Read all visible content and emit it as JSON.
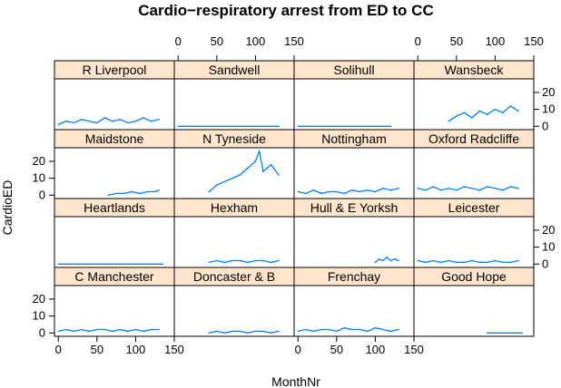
{
  "chart_data": {
    "type": "line",
    "title": "Cardio−respiratory arrest from ED to CC",
    "xlabel": "MonthNr",
    "ylabel": "CardioED",
    "xlim": [
      -5,
      150
    ],
    "ylim": [
      -2,
      28
    ],
    "x_ticks": [
      0,
      50,
      100,
      150
    ],
    "y_ticks": [
      0,
      10,
      20
    ],
    "line_color": "#0080ff",
    "strip_color": "#ffe5cc",
    "layout": {
      "rows": 4,
      "cols": 4
    },
    "panels": [
      {
        "name": "R Liverpool",
        "x": [
          0,
          10,
          20,
          30,
          40,
          50,
          60,
          70,
          80,
          90,
          100,
          110,
          120,
          130
        ],
        "y": [
          1,
          3,
          2,
          4,
          3,
          2,
          5,
          3,
          4,
          2,
          3,
          5,
          3,
          4
        ]
      },
      {
        "name": "Sandwell",
        "x": [
          0,
          130
        ],
        "y": [
          0,
          0
        ]
      },
      {
        "name": "Solihull",
        "x": [
          0,
          120
        ],
        "y": [
          0,
          0
        ]
      },
      {
        "name": "Wansbeck",
        "x": [
          40,
          50,
          60,
          70,
          80,
          90,
          100,
          110,
          120,
          130
        ],
        "y": [
          3,
          6,
          8,
          5,
          9,
          7,
          10,
          8,
          12,
          9
        ]
      },
      {
        "name": "Maidstone",
        "x": [
          65,
          75,
          85,
          95,
          105,
          115,
          125,
          130
        ],
        "y": [
          0,
          1,
          1,
          2,
          1,
          2,
          2,
          3
        ]
      },
      {
        "name": "N Tyneside",
        "x": [
          40,
          50,
          60,
          70,
          80,
          90,
          100,
          105,
          110,
          120,
          130
        ],
        "y": [
          2,
          6,
          8,
          10,
          12,
          16,
          20,
          26,
          14,
          18,
          12
        ]
      },
      {
        "name": "Nottingham",
        "x": [
          0,
          10,
          20,
          30,
          40,
          50,
          60,
          70,
          80,
          90,
          100,
          110,
          120,
          130
        ],
        "y": [
          2,
          1,
          3,
          1,
          2,
          2,
          1,
          3,
          2,
          3,
          2,
          4,
          3,
          4
        ]
      },
      {
        "name": "Oxford Radcliffe",
        "x": [
          0,
          10,
          20,
          30,
          40,
          50,
          60,
          70,
          80,
          90,
          100,
          110,
          120,
          130
        ],
        "y": [
          4,
          3,
          5,
          3,
          4,
          3,
          5,
          4,
          3,
          5,
          4,
          3,
          5,
          4
        ]
      },
      {
        "name": "Heartlands",
        "x": [
          0,
          135
        ],
        "y": [
          0,
          0
        ]
      },
      {
        "name": "Hexham",
        "x": [
          40,
          50,
          60,
          70,
          80,
          90,
          100,
          110,
          120,
          130
        ],
        "y": [
          1,
          2,
          1,
          2,
          2,
          1,
          2,
          2,
          1,
          2
        ]
      },
      {
        "name": "Hull & E Yorksh",
        "x": [
          100,
          105,
          110,
          115,
          120,
          125,
          130
        ],
        "y": [
          1,
          3,
          2,
          4,
          2,
          3,
          2
        ]
      },
      {
        "name": "Leicester",
        "x": [
          0,
          10,
          20,
          30,
          40,
          50,
          60,
          70,
          80,
          90,
          100,
          110,
          120,
          130
        ],
        "y": [
          2,
          1,
          2,
          1,
          2,
          1,
          1,
          2,
          1,
          1,
          2,
          1,
          1,
          2
        ]
      },
      {
        "name": "C Manchester",
        "x": [
          0,
          10,
          20,
          30,
          40,
          50,
          60,
          70,
          80,
          90,
          100,
          110,
          120,
          130
        ],
        "y": [
          1,
          2,
          1,
          2,
          1,
          2,
          2,
          1,
          2,
          1,
          2,
          1,
          2,
          2
        ]
      },
      {
        "name": "Doncaster & B",
        "x": [
          40,
          50,
          60,
          70,
          80,
          90,
          100,
          110,
          120,
          130
        ],
        "y": [
          0,
          1,
          0,
          1,
          1,
          0,
          1,
          1,
          0,
          1
        ]
      },
      {
        "name": "Frenchay",
        "x": [
          0,
          10,
          20,
          30,
          40,
          50,
          60,
          70,
          80,
          90,
          100,
          110,
          120,
          130
        ],
        "y": [
          1,
          2,
          1,
          2,
          2,
          1,
          3,
          2,
          2,
          1,
          3,
          2,
          1,
          2
        ]
      },
      {
        "name": "Good Hope",
        "x": [
          90,
          135
        ],
        "y": [
          0,
          0
        ]
      }
    ]
  }
}
